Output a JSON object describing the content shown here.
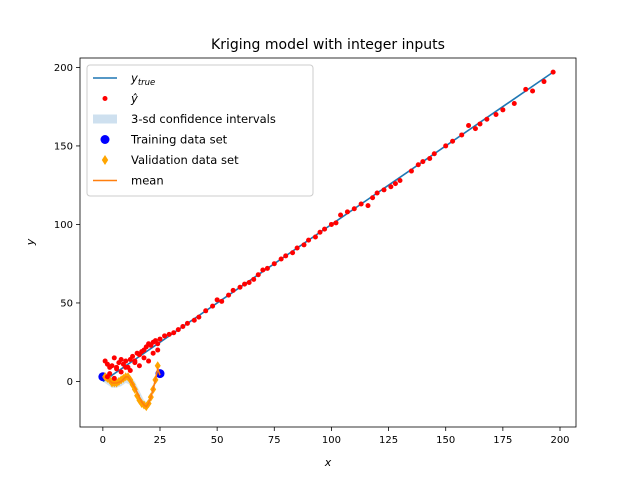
{
  "chart_data": {
    "type": "scatter",
    "title": "Kriging model with integer inputs",
    "xlabel": "x",
    "ylabel": "y",
    "xlim": [
      -10,
      207
    ],
    "ylim": [
      -29,
      206
    ],
    "xticks": [
      0,
      25,
      50,
      75,
      100,
      125,
      150,
      175,
      200
    ],
    "yticks": [
      0,
      50,
      100,
      150,
      200
    ],
    "grid": false,
    "legend_position": "top-left",
    "legend": [
      {
        "label_main": "y",
        "label_sub": "true",
        "kind": "line",
        "color": "#1f77b4"
      },
      {
        "label_main": "ŷ",
        "label_sub": "",
        "kind": "point",
        "color": "#ff0000"
      },
      {
        "label_main": "3-sd confidence intervals",
        "label_sub": "",
        "kind": "band",
        "color": "#c6dbec"
      },
      {
        "label_main": "Training data set",
        "label_sub": "",
        "kind": "big-point",
        "color": "#0000ff"
      },
      {
        "label_main": "Validation data set",
        "label_sub": "",
        "kind": "diamond",
        "color": "#ffa500"
      },
      {
        "label_main": "mean",
        "label_sub": "",
        "kind": "line",
        "color": "#ff7f0e"
      }
    ],
    "series": [
      {
        "name": "y_true",
        "kind": "line",
        "color": "#1f77b4",
        "x": [
          0,
          197
        ],
        "y": [
          0,
          197
        ]
      },
      {
        "name": "ŷ",
        "kind": "scatter",
        "color": "#ff0000",
        "x": [
          1,
          2,
          3,
          4,
          5,
          6,
          7,
          8,
          9,
          10,
          11,
          12,
          13,
          14,
          15,
          16,
          17,
          18,
          19,
          20,
          21,
          22,
          23,
          24,
          25,
          27,
          29,
          31,
          33,
          35,
          37,
          40,
          42,
          45,
          48,
          50,
          52,
          55,
          57,
          60,
          62,
          64,
          66,
          68,
          70,
          72,
          75,
          78,
          80,
          83,
          85,
          88,
          90,
          93,
          95,
          97,
          100,
          102,
          104,
          107,
          110,
          113,
          116,
          118,
          120,
          123,
          126,
          128,
          130,
          135,
          138,
          140,
          143,
          145,
          150,
          153,
          157,
          160,
          163,
          165,
          168,
          172,
          175,
          180,
          185,
          188,
          193,
          197,
          2,
          3,
          5,
          6,
          8,
          10,
          12,
          14,
          16,
          18,
          20,
          22,
          24
        ],
        "y": [
          13,
          11,
          9,
          10,
          15,
          9,
          12,
          14,
          11,
          13,
          9,
          14,
          16,
          13,
          18,
          17,
          19,
          20,
          22,
          24,
          23,
          25,
          26,
          24,
          27,
          29,
          30,
          31,
          33,
          35,
          37,
          39,
          41,
          45,
          48,
          52,
          51,
          55,
          58,
          60,
          62,
          63,
          65,
          68,
          71,
          72,
          75,
          78,
          80,
          82,
          85,
          87,
          90,
          92,
          95,
          97,
          100,
          101,
          106,
          108,
          110,
          113,
          112,
          117,
          120,
          122,
          124,
          126,
          128,
          134,
          138,
          140,
          142,
          145,
          150,
          153,
          157,
          163,
          161,
          164,
          167,
          170,
          173,
          177,
          186,
          185,
          191,
          197,
          3,
          5,
          2,
          8,
          6,
          9,
          7,
          12,
          10,
          15,
          13,
          18,
          20
        ]
      },
      {
        "name": "3-sd confidence intervals",
        "kind": "band",
        "color": "#c6dbec",
        "x": [
          0,
          2,
          4,
          6,
          8,
          10,
          12,
          14,
          16,
          17,
          18,
          19,
          20,
          21,
          22,
          23,
          24,
          25
        ],
        "lower": [
          0,
          -2,
          -4,
          -4,
          -3,
          -1,
          -2,
          -6,
          -12,
          -15,
          -17,
          -18,
          -16,
          -12,
          -7,
          -2,
          3,
          3
        ],
        "upper": [
          6,
          5,
          3,
          2,
          3,
          4,
          3,
          0,
          -6,
          -9,
          -12,
          -13,
          -11,
          -7,
          -2,
          3,
          8,
          6
        ]
      },
      {
        "name": "Training data set",
        "kind": "big-scatter",
        "color": "#0000ff",
        "x": [
          0,
          25
        ],
        "y": [
          3,
          5
        ]
      },
      {
        "name": "Validation data set",
        "kind": "diamond",
        "color": "#ffa500",
        "x": [
          1,
          2,
          3,
          4,
          5,
          6,
          7,
          8,
          9,
          10,
          11,
          12,
          13,
          14,
          15,
          16,
          17,
          18,
          19,
          20,
          21,
          22,
          23,
          24
        ],
        "y": [
          3,
          2,
          1,
          -1,
          -1,
          -1,
          0,
          1,
          2,
          3,
          3,
          1,
          -2,
          -5,
          -9,
          -12,
          -14,
          -15,
          -16,
          -14,
          -10,
          -5,
          1,
          10
        ]
      },
      {
        "name": "mean",
        "kind": "line",
        "color": "#ff7f0e",
        "x": [
          0,
          2,
          4,
          6,
          8,
          10,
          11,
          12,
          14,
          16,
          17,
          18,
          19,
          20,
          21,
          22,
          23,
          24,
          25
        ],
        "y": [
          3,
          2,
          -1,
          -1,
          0,
          3,
          3,
          1,
          -4,
          -10,
          -13,
          -15,
          -16,
          -14,
          -10,
          -5,
          1,
          8,
          4
        ]
      }
    ]
  }
}
